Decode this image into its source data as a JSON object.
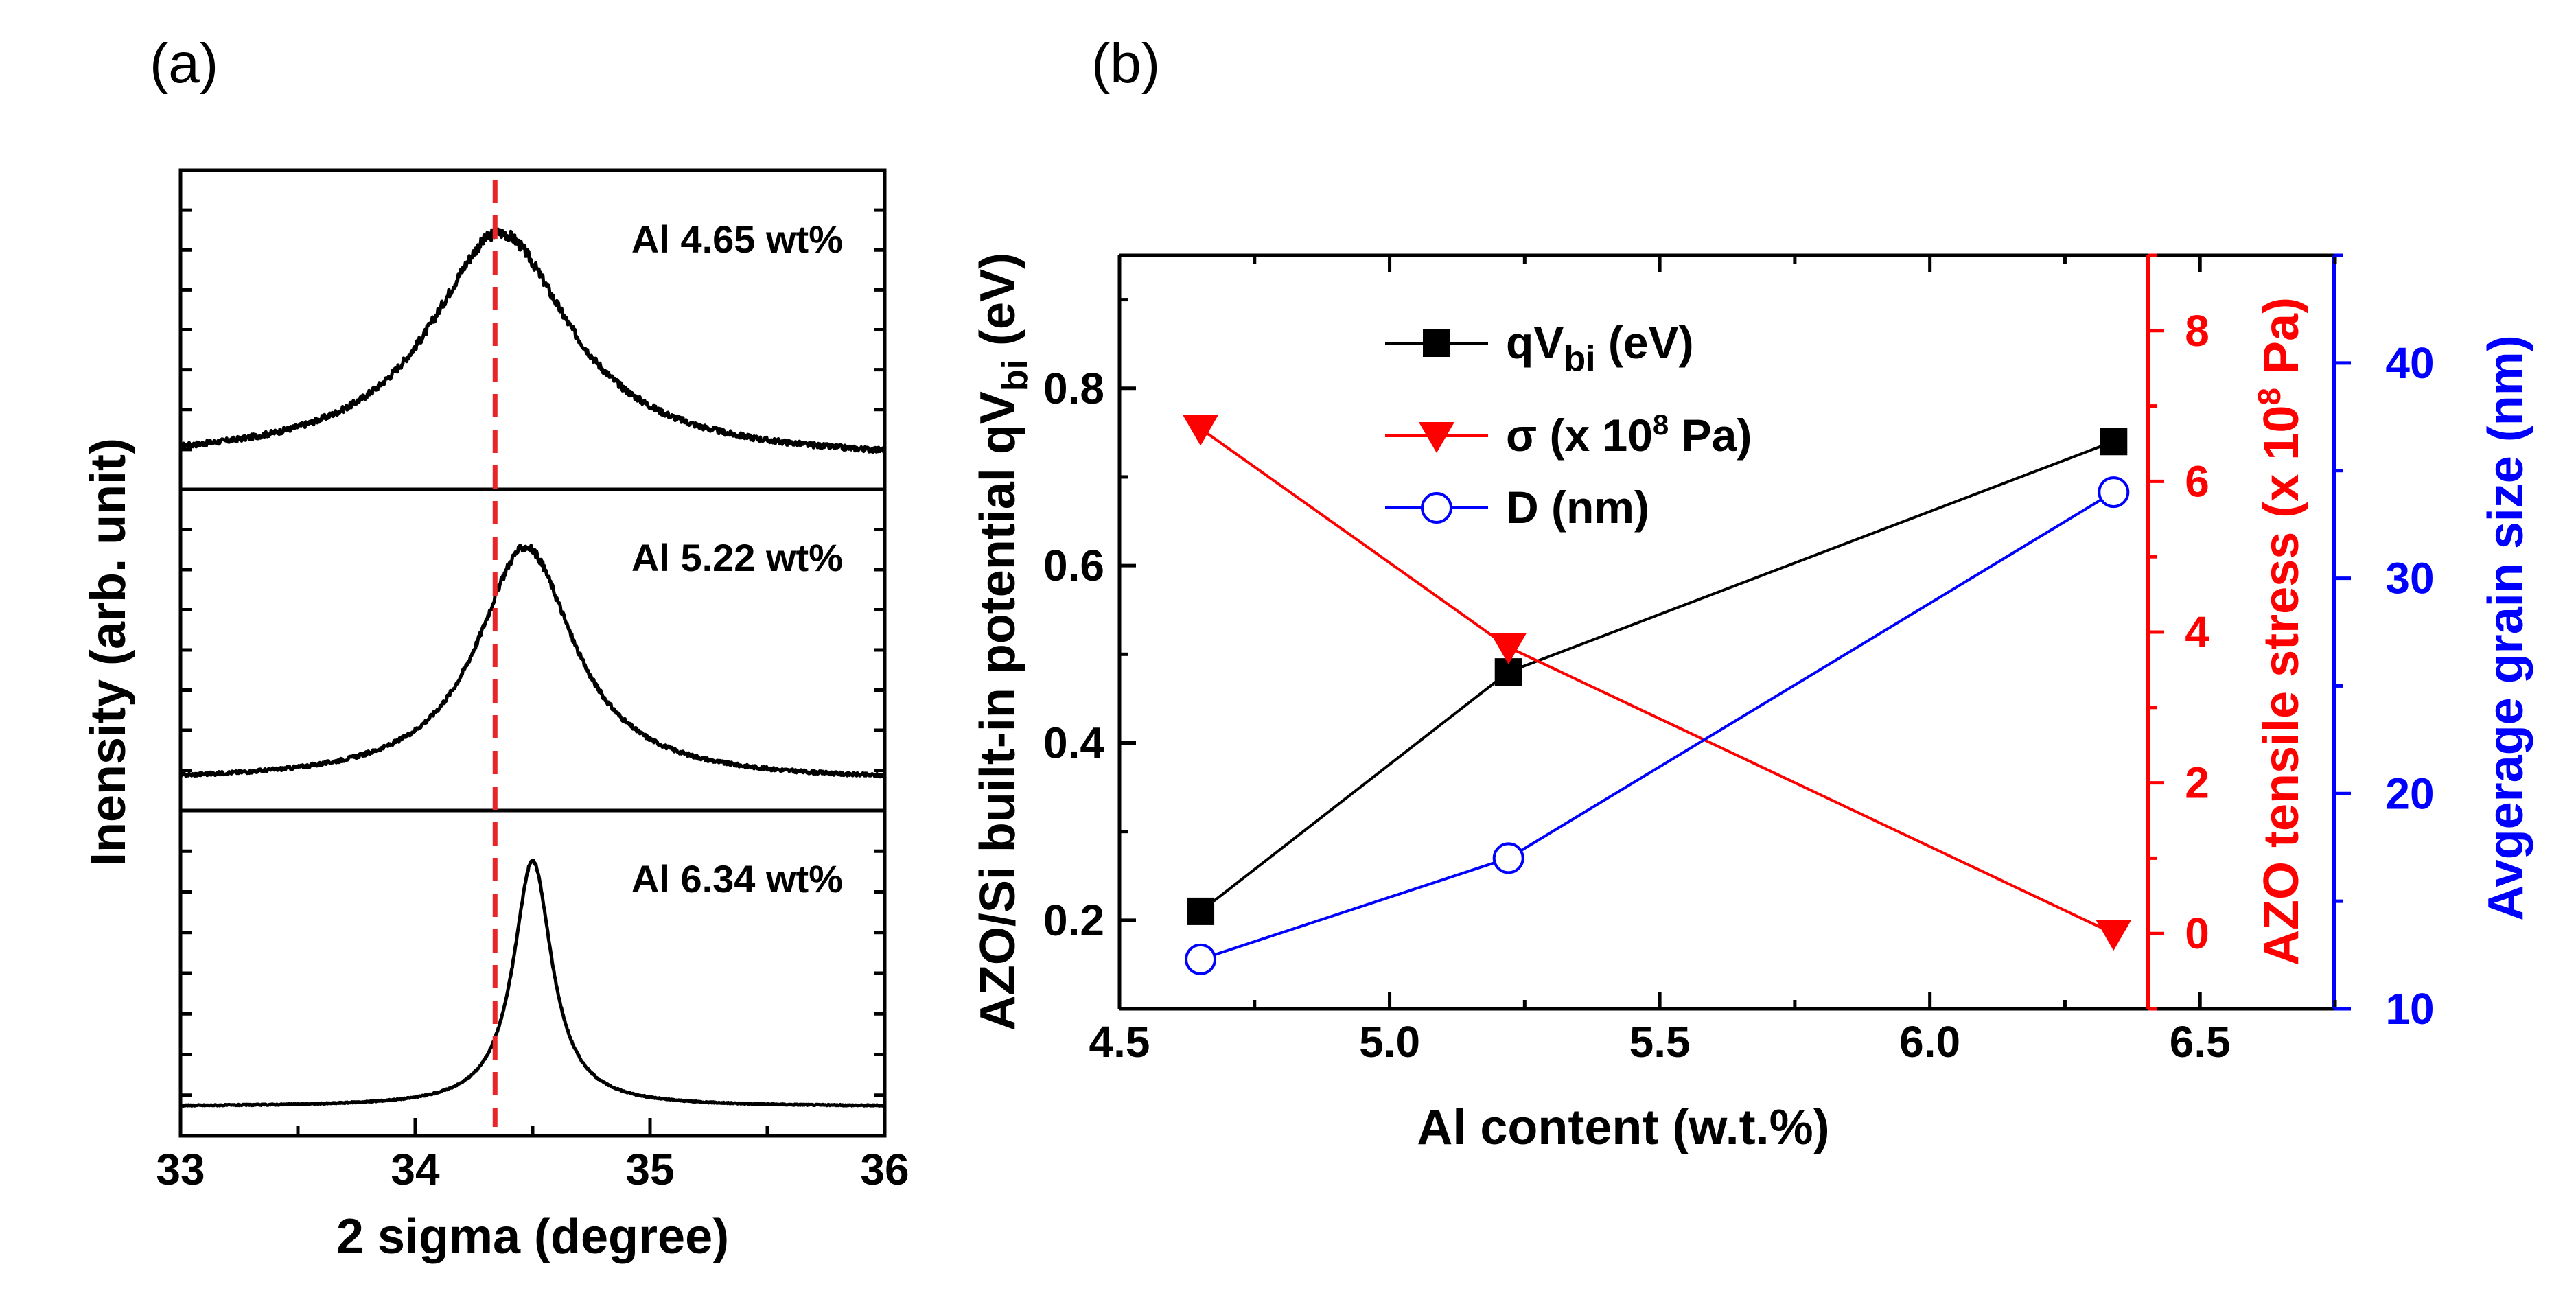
{
  "figure": {
    "panel_a_label": "(a)",
    "panel_b_label": "(b)"
  },
  "chart_data": [
    {
      "type": "line",
      "panel": "(a)",
      "xlabel": "2 sigma (degree)",
      "ylabel": "Inensity (arb. unit)",
      "xlim": [
        33,
        36
      ],
      "xticks": [
        "33",
        "34",
        "35",
        "36"
      ],
      "reference_line_x": 34.34,
      "reference_line_color": "#e8262a",
      "series": [
        {
          "name": "Al 4.65 wt%",
          "peak_x": 34.36,
          "fwhm": 0.72,
          "amplitude": 0.86,
          "noise": 0.018
        },
        {
          "name": "Al 5.22 wt%",
          "peak_x": 34.47,
          "fwhm": 0.5,
          "amplitude": 0.88,
          "noise": 0.012
        },
        {
          "name": "Al 6.34 wt%",
          "peak_x": 34.5,
          "fwhm": 0.2,
          "amplitude": 0.91,
          "noise": 0.004
        }
      ]
    },
    {
      "type": "line",
      "panel": "(b)",
      "xlabel": "Al content (w.t.%)",
      "xlim": [
        4.5,
        6.75
      ],
      "xticks": [
        "4.5",
        "5.0",
        "5.5",
        "6.0",
        "6.5"
      ],
      "x": [
        4.65,
        5.22,
        6.34
      ],
      "left_axis": {
        "label_main": "AZO/Si built-in potential qV",
        "label_sub": "bi",
        "label_tail": " (eV)",
        "ylim": [
          0.1,
          0.95
        ],
        "ticks": [
          "0.2",
          "0.4",
          "0.6",
          "0.8"
        ],
        "color": "#000000"
      },
      "right_axis_1": {
        "label_main": "AZO tensile stress (x 10",
        "label_sup": "8",
        "label_tail": " Pa)",
        "ylim": [
          -1,
          9
        ],
        "ticks": [
          "0",
          "2",
          "4",
          "6",
          "8"
        ],
        "color": "#ff0000"
      },
      "right_axis_2": {
        "label": "Avgerage grain size (nm)",
        "ylim": [
          10,
          45
        ],
        "ticks": [
          "10",
          "20",
          "30",
          "40"
        ],
        "color": "#0000ff"
      },
      "series": [
        {
          "name_main": "qV",
          "name_sub": "bi",
          "name_tail": " (eV)",
          "axis": "left",
          "values": [
            0.21,
            0.48,
            0.74
          ],
          "color": "#000000",
          "marker": "square"
        },
        {
          "name_main": "σ  (x 10",
          "name_sup": "8",
          "name_tail": " Pa)",
          "axis": "right_1",
          "values": [
            6.7,
            3.8,
            0.0
          ],
          "color": "#ff0000",
          "marker": "triangle-down"
        },
        {
          "name_main": "D (nm)",
          "axis": "right_2",
          "values": [
            12.3,
            17.0,
            34.0
          ],
          "color": "#0000ff",
          "marker": "open-circle"
        }
      ],
      "legend_position": "top-left"
    }
  ]
}
